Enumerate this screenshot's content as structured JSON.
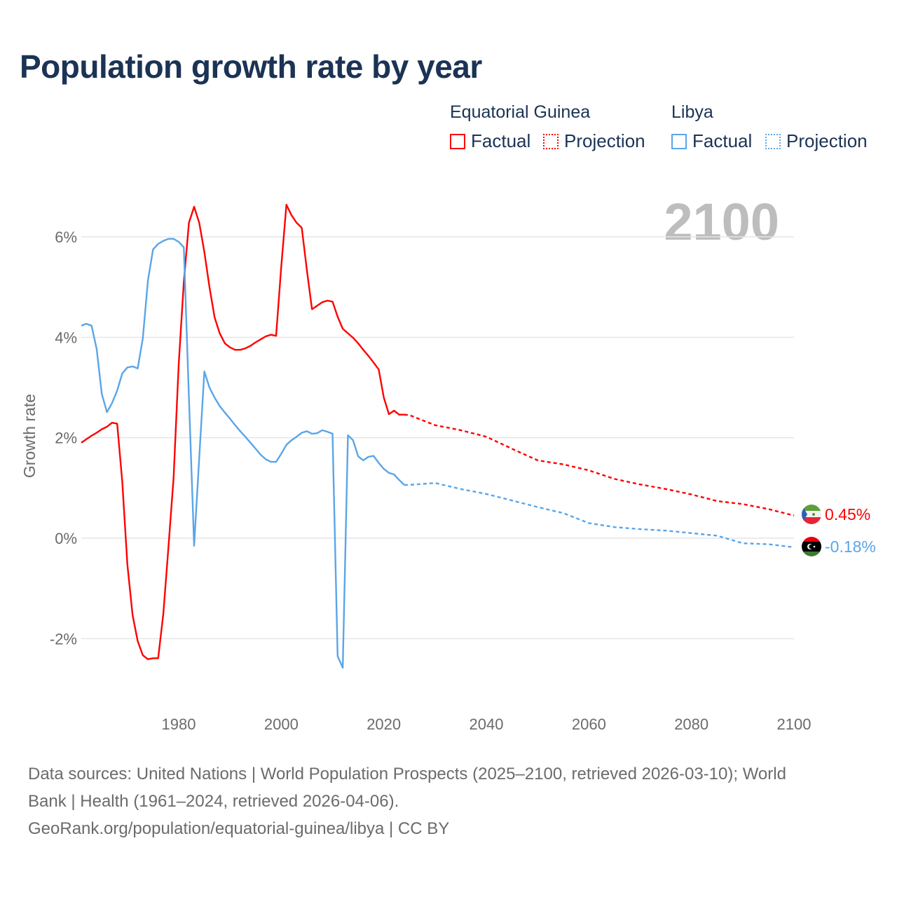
{
  "title": "Population growth rate by year",
  "legend": {
    "groups": [
      {
        "country": "Equatorial Guinea",
        "factual": "Factual",
        "projection": "Projection",
        "color": "#ff0000"
      },
      {
        "country": "Libya",
        "factual": "Factual",
        "projection": "Projection",
        "color": "#5aa5e8"
      }
    ]
  },
  "year_label": "2100",
  "footer": {
    "line1": "Data sources: United Nations | World Population Prospects (2025–2100, retrieved 2026-03-10); World",
    "line2": "Bank | Health (1961–2024, retrieved 2026-04-06).",
    "line3": "GeoRank.org/population/equatorial-guinea/libya | CC BY"
  },
  "chart_data": {
    "type": "line",
    "title": "Population growth rate by year",
    "xlabel": "",
    "ylabel": "Growth rate",
    "xlim": [
      1961,
      2100
    ],
    "ylim": [
      -3.3,
      6.9
    ],
    "x_ticks": [
      1980,
      2000,
      2020,
      2040,
      2060,
      2080,
      2100
    ],
    "x_tick_labels": [
      "1980",
      "2000",
      "2020",
      "2040",
      "2060",
      "2080",
      "2100"
    ],
    "y_ticks": [
      6,
      4,
      2,
      0,
      -2
    ],
    "y_tick_labels": [
      "6%",
      "4%",
      "2%",
      "0%",
      "-2%"
    ],
    "grid": true,
    "legend_position": "top-right",
    "series": [
      {
        "name": "Equatorial Guinea",
        "color": "#ff0000",
        "end_label": "0.45%",
        "factual": {
          "x_start": 1961,
          "values": [
            1.9,
            1.97,
            2.04,
            2.1,
            2.17,
            2.22,
            2.3,
            2.28,
            1.12,
            -0.53,
            -1.53,
            -2.05,
            -2.33,
            -2.41,
            -2.39,
            -2.39,
            -1.5,
            -0.17,
            1.2,
            3.46,
            5.1,
            6.28,
            6.6,
            6.28,
            5.7,
            5.0,
            4.4,
            4.08,
            3.88,
            3.8,
            3.75,
            3.75,
            3.78,
            3.83,
            3.9,
            3.96,
            4.02,
            4.05,
            4.03,
            5.4,
            6.64,
            6.43,
            6.28,
            6.18,
            5.34,
            4.56,
            4.63,
            4.7,
            4.73,
            4.71,
            4.41,
            4.17,
            4.08,
            3.99,
            3.88,
            3.75,
            3.63,
            3.5,
            3.36,
            2.8,
            2.47,
            2.54,
            2.46,
            2.46
          ]
        },
        "projection": {
          "x": [
            2024,
            2025,
            2030,
            2035,
            2040,
            2045,
            2050,
            2055,
            2060,
            2065,
            2070,
            2075,
            2080,
            2085,
            2090,
            2095,
            2100
          ],
          "values": [
            2.46,
            2.45,
            2.25,
            2.15,
            2.02,
            1.78,
            1.55,
            1.47,
            1.35,
            1.18,
            1.07,
            0.98,
            0.87,
            0.74,
            0.68,
            0.58,
            0.45
          ]
        }
      },
      {
        "name": "Libya",
        "color": "#5aa5e8",
        "end_label": "-0.18%",
        "factual": {
          "x_start": 1961,
          "values": [
            4.23,
            4.27,
            4.23,
            3.77,
            2.87,
            2.51,
            2.69,
            2.94,
            3.28,
            3.4,
            3.42,
            3.38,
            3.98,
            5.13,
            5.75,
            5.86,
            5.92,
            5.96,
            5.96,
            5.9,
            5.79,
            2.8,
            -0.15,
            1.6,
            3.32,
            3.0,
            2.8,
            2.63,
            2.5,
            2.38,
            2.25,
            2.13,
            2.02,
            1.9,
            1.78,
            1.66,
            1.57,
            1.52,
            1.52,
            1.68,
            1.86,
            1.95,
            2.02,
            2.1,
            2.13,
            2.08,
            2.09,
            2.15,
            2.12,
            2.08,
            -2.35,
            -2.58,
            2.05,
            1.95,
            1.63,
            1.55,
            1.62,
            1.64,
            1.5,
            1.38,
            1.3,
            1.27,
            1.16,
            1.06
          ]
        },
        "projection": {
          "x": [
            2024,
            2025,
            2030,
            2035,
            2040,
            2045,
            2050,
            2055,
            2060,
            2065,
            2070,
            2075,
            2080,
            2085,
            2090,
            2095,
            2100
          ],
          "values": [
            1.06,
            1.06,
            1.1,
            0.98,
            0.88,
            0.75,
            0.62,
            0.5,
            0.3,
            0.22,
            0.18,
            0.15,
            0.1,
            0.05,
            -0.1,
            -0.12,
            -0.18
          ]
        }
      }
    ]
  }
}
